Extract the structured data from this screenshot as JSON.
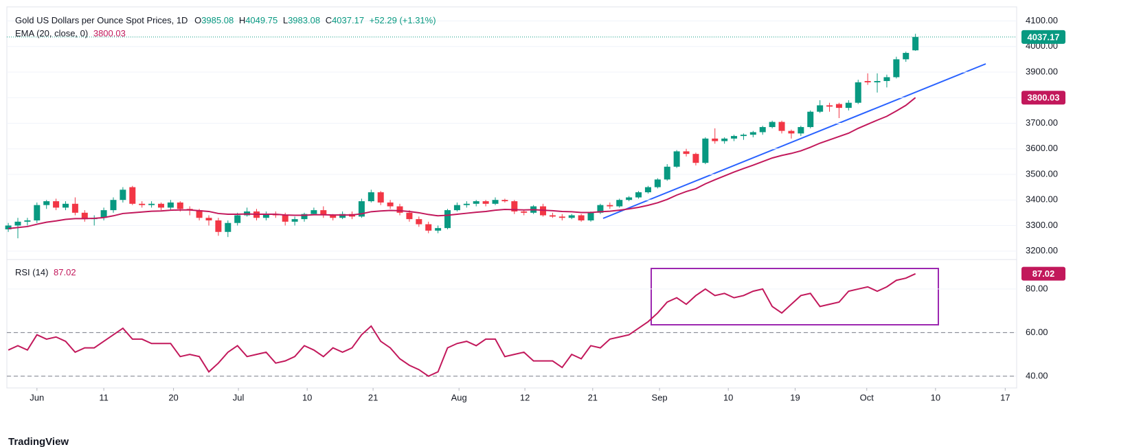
{
  "chart_data": [
    {
      "type": "candlestick",
      "title": "Gold US Dollars per Ounce Spot Prices, 1D",
      "header_labels": [
        "O",
        "H",
        "L",
        "C"
      ],
      "change": "+52.29 (+1.31%)",
      "up_color": "#089981",
      "down_color": "#f23645",
      "ohlc": [
        [
          3285,
          3310,
          3275,
          3300
        ],
        [
          3300,
          3330,
          3250,
          3315
        ],
        [
          3315,
          3330,
          3300,
          3320
        ],
        [
          3320,
          3390,
          3310,
          3380
        ],
        [
          3380,
          3400,
          3365,
          3395
        ],
        [
          3395,
          3405,
          3360,
          3370
        ],
        [
          3370,
          3395,
          3360,
          3385
        ],
        [
          3385,
          3410,
          3340,
          3350
        ],
        [
          3350,
          3360,
          3315,
          3325
        ],
        [
          3325,
          3340,
          3300,
          3330
        ],
        [
          3330,
          3370,
          3320,
          3360
        ],
        [
          3360,
          3410,
          3350,
          3400
        ],
        [
          3400,
          3450,
          3390,
          3440
        ],
        [
          3450,
          3455,
          3380,
          3385
        ],
        [
          3385,
          3395,
          3370,
          3380
        ],
        [
          3380,
          3395,
          3370,
          3385
        ],
        [
          3385,
          3390,
          3360,
          3370
        ],
        [
          3370,
          3400,
          3360,
          3390
        ],
        [
          3390,
          3395,
          3355,
          3365
        ],
        [
          3365,
          3375,
          3340,
          3360
        ],
        [
          3360,
          3365,
          3320,
          3330
        ],
        [
          3330,
          3340,
          3300,
          3320
        ],
        [
          3320,
          3330,
          3260,
          3275
        ],
        [
          3275,
          3320,
          3255,
          3310
        ],
        [
          3310,
          3350,
          3300,
          3340
        ],
        [
          3340,
          3370,
          3335,
          3355
        ],
        [
          3355,
          3365,
          3320,
          3330
        ],
        [
          3330,
          3355,
          3320,
          3345
        ],
        [
          3345,
          3355,
          3330,
          3340
        ],
        [
          3340,
          3350,
          3300,
          3315
        ],
        [
          3315,
          3335,
          3300,
          3325
        ],
        [
          3325,
          3350,
          3315,
          3345
        ],
        [
          3345,
          3370,
          3340,
          3360
        ],
        [
          3360,
          3375,
          3330,
          3340
        ],
        [
          3340,
          3345,
          3320,
          3330
        ],
        [
          3330,
          3355,
          3325,
          3345
        ],
        [
          3345,
          3355,
          3325,
          3335
        ],
        [
          3335,
          3405,
          3330,
          3395
        ],
        [
          3395,
          3440,
          3390,
          3430
        ],
        [
          3430,
          3435,
          3380,
          3390
        ],
        [
          3390,
          3400,
          3365,
          3375
        ],
        [
          3375,
          3385,
          3340,
          3350
        ],
        [
          3350,
          3360,
          3315,
          3325
        ],
        [
          3325,
          3335,
          3295,
          3305
        ],
        [
          3305,
          3315,
          3270,
          3280
        ],
        [
          3280,
          3300,
          3270,
          3290
        ],
        [
          3290,
          3365,
          3285,
          3360
        ],
        [
          3360,
          3390,
          3355,
          3380
        ],
        [
          3380,
          3395,
          3370,
          3385
        ],
        [
          3385,
          3400,
          3375,
          3395
        ],
        [
          3395,
          3400,
          3375,
          3385
        ],
        [
          3385,
          3410,
          3380,
          3400
        ],
        [
          3400,
          3405,
          3390,
          3395
        ],
        [
          3395,
          3400,
          3345,
          3355
        ],
        [
          3355,
          3360,
          3340,
          3350
        ],
        [
          3350,
          3380,
          3345,
          3375
        ],
        [
          3375,
          3385,
          3335,
          3340
        ],
        [
          3340,
          3350,
          3330,
          3335
        ],
        [
          3335,
          3345,
          3320,
          3330
        ],
        [
          3330,
          3345,
          3325,
          3340
        ],
        [
          3340,
          3345,
          3315,
          3320
        ],
        [
          3320,
          3355,
          3315,
          3350
        ],
        [
          3350,
          3385,
          3345,
          3380
        ],
        [
          3380,
          3390,
          3365,
          3375
        ],
        [
          3375,
          3405,
          3370,
          3400
        ],
        [
          3400,
          3415,
          3395,
          3410
        ],
        [
          3410,
          3435,
          3405,
          3430
        ],
        [
          3430,
          3455,
          3425,
          3450
        ],
        [
          3450,
          3485,
          3445,
          3480
        ],
        [
          3480,
          3540,
          3475,
          3530
        ],
        [
          3530,
          3595,
          3525,
          3590
        ],
        [
          3590,
          3600,
          3570,
          3580
        ],
        [
          3580,
          3585,
          3535,
          3545
        ],
        [
          3545,
          3645,
          3540,
          3640
        ],
        [
          3640,
          3680,
          3620,
          3630
        ],
        [
          3630,
          3645,
          3620,
          3640
        ],
        [
          3640,
          3655,
          3630,
          3650
        ],
        [
          3650,
          3660,
          3635,
          3655
        ],
        [
          3655,
          3670,
          3645,
          3665
        ],
        [
          3665,
          3690,
          3655,
          3685
        ],
        [
          3685,
          3710,
          3680,
          3705
        ],
        [
          3705,
          3710,
          3660,
          3670
        ],
        [
          3670,
          3675,
          3640,
          3660
        ],
        [
          3660,
          3690,
          3650,
          3685
        ],
        [
          3685,
          3750,
          3680,
          3745
        ],
        [
          3745,
          3790,
          3740,
          3770
        ],
        [
          3770,
          3780,
          3745,
          3765
        ],
        [
          3775,
          3780,
          3720,
          3760
        ],
        [
          3760,
          3790,
          3750,
          3780
        ],
        [
          3780,
          3870,
          3775,
          3860
        ],
        [
          3865,
          3895,
          3850,
          3860
        ],
        [
          3860,
          3895,
          3820,
          3865
        ],
        [
          3865,
          3890,
          3840,
          3880
        ],
        [
          3880,
          3960,
          3875,
          3950
        ],
        [
          3950,
          3980,
          3940,
          3975
        ],
        [
          3985.08,
          4049.75,
          3983.08,
          4037.17
        ]
      ],
      "series": [
        {
          "name": "EMA (20, close, 0)",
          "color": "#c2185b",
          "values": [
            3288,
            3292,
            3296,
            3305,
            3313,
            3318,
            3324,
            3327,
            3327,
            3328,
            3331,
            3338,
            3347,
            3350,
            3353,
            3356,
            3357,
            3360,
            3361,
            3361,
            3358,
            3355,
            3347,
            3344,
            3344,
            3345,
            3344,
            3344,
            3344,
            3341,
            3340,
            3340,
            3342,
            3342,
            3341,
            3341,
            3341,
            3346,
            3354,
            3357,
            3359,
            3358,
            3355,
            3350,
            3343,
            3338,
            3340,
            3344,
            3348,
            3352,
            3355,
            3360,
            3363,
            3362,
            3361,
            3362,
            3360,
            3358,
            3355,
            3354,
            3351,
            3351,
            3354,
            3356,
            3360,
            3365,
            3371,
            3379,
            3389,
            3402,
            3419,
            3433,
            3444,
            3463,
            3479,
            3494,
            3509,
            3523,
            3536,
            3550,
            3564,
            3574,
            3582,
            3592,
            3606,
            3622,
            3635,
            3648,
            3661,
            3680,
            3696,
            3712,
            3727,
            3748,
            3770,
            3800.03
          ]
        }
      ],
      "price_line": true,
      "grid": true,
      "xlim": [
        -0.15,
        105.6
      ],
      "ylim": [
        3175,
        4155
      ],
      "yticks": [
        {
          "value": 3200,
          "label": "3200.00"
        },
        {
          "value": 3300,
          "label": "3300.00"
        },
        {
          "value": 3400,
          "label": "3400.00"
        },
        {
          "value": 3500,
          "label": "3500.00"
        },
        {
          "value": 3600,
          "label": "3600.00"
        },
        {
          "value": 3700,
          "label": "3700.00"
        },
        {
          "value": 3800,
          "label": "3800.00"
        },
        {
          "value": 3900,
          "label": "3900.00"
        },
        {
          "value": 4000,
          "label": "4000.00"
        },
        {
          "value": 4100,
          "label": "4100.00"
        }
      ]
    },
    {
      "type": "line",
      "series": [
        {
          "name": "RSI (14)",
          "color": "#c2185b",
          "values": [
            52,
            54,
            52,
            59,
            57,
            58,
            56,
            51,
            53,
            53,
            56,
            59,
            62,
            57,
            57,
            55,
            55,
            55,
            49,
            50,
            49,
            42,
            46,
            51,
            54,
            49,
            50,
            51,
            46,
            47,
            49,
            54,
            52,
            49,
            53,
            51,
            53,
            59,
            63,
            56,
            53,
            48,
            45,
            43,
            40,
            42,
            53,
            55,
            56,
            54,
            57,
            57,
            49,
            50,
            51,
            47,
            47,
            47,
            44,
            50,
            48,
            54,
            53,
            57,
            58,
            59,
            62,
            65,
            69,
            74,
            76,
            73,
            77,
            80,
            77,
            78,
            76,
            77,
            79,
            80,
            72,
            69,
            73,
            77,
            78,
            72,
            73,
            74,
            79,
            80,
            81,
            79,
            81,
            84,
            85,
            87.02
          ]
        }
      ],
      "levels": [
        60,
        40
      ],
      "grid": true,
      "xlim": [
        -0.15,
        105.6
      ],
      "ylim": [
        34.6,
        92.9
      ],
      "yticks": [
        {
          "value": 80,
          "label": "80.00"
        },
        {
          "value": 60,
          "label": "60.00"
        },
        {
          "value": 40,
          "label": "40.00"
        }
      ],
      "xticks": [
        {
          "value": 3,
          "label": "Jun"
        },
        {
          "value": 10,
          "label": "11"
        },
        {
          "value": 17.3,
          "label": "20"
        },
        {
          "value": 24.1,
          "label": "Jul"
        },
        {
          "value": 31.3,
          "label": "10"
        },
        {
          "value": 38.2,
          "label": "21"
        },
        {
          "value": 47.2,
          "label": "Aug"
        },
        {
          "value": 54.1,
          "label": "12"
        },
        {
          "value": 61.2,
          "label": "21"
        },
        {
          "value": 68.2,
          "label": "Sep"
        },
        {
          "value": 75.4,
          "label": "10"
        },
        {
          "value": 82.4,
          "label": "19"
        },
        {
          "value": 89.9,
          "label": "Oct"
        },
        {
          "value": 97.1,
          "label": "10"
        },
        {
          "value": 104.4,
          "label": "17"
        }
      ]
    }
  ],
  "watermark": "TradingView"
}
